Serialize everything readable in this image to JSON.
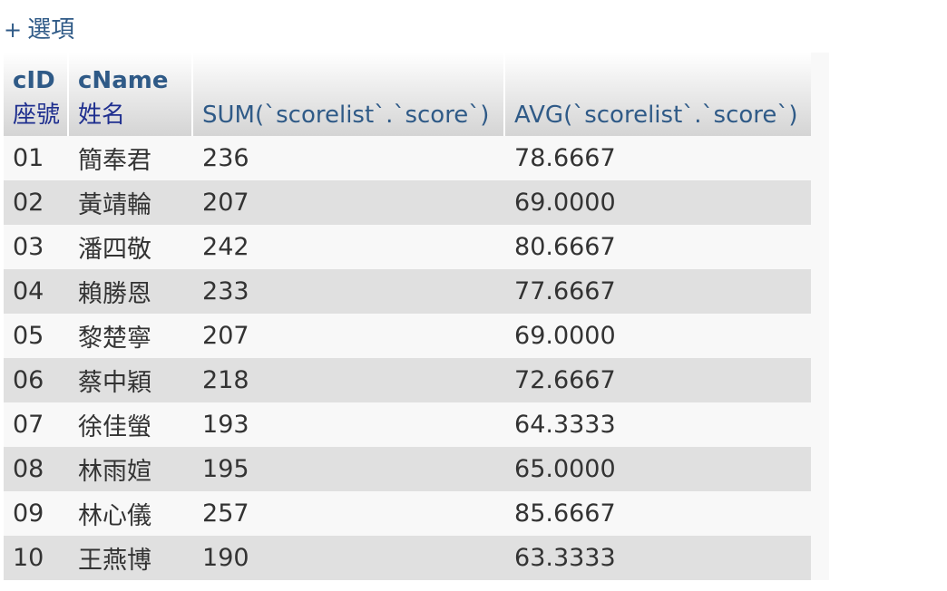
{
  "options": {
    "toggle_symbol": "+",
    "label": "選項"
  },
  "table": {
    "headers": [
      {
        "name": "cID",
        "comment": "座號"
      },
      {
        "name": "cName",
        "comment": "姓名"
      },
      {
        "label": "SUM(`scorelist`.`score`)"
      },
      {
        "label": "AVG(`scorelist`.`score`)"
      }
    ],
    "rows": [
      [
        "01",
        "簡奉君",
        "236",
        "78.6667"
      ],
      [
        "02",
        "黃靖輪",
        "207",
        "69.0000"
      ],
      [
        "03",
        "潘四敬",
        "242",
        "80.6667"
      ],
      [
        "04",
        "賴勝恩",
        "233",
        "77.6667"
      ],
      [
        "05",
        "黎楚寧",
        "207",
        "69.0000"
      ],
      [
        "06",
        "蔡中穎",
        "218",
        "72.6667"
      ],
      [
        "07",
        "徐佳螢",
        "193",
        "64.3333"
      ],
      [
        "08",
        "林雨媗",
        "195",
        "65.0000"
      ],
      [
        "09",
        "林心儀",
        "257",
        "85.6667"
      ],
      [
        "10",
        "王燕博",
        "190",
        "63.3333"
      ]
    ]
  },
  "colors": {
    "link": "#2f5a87",
    "comment": "#1f2f8f",
    "row_odd": "#f8f8f8",
    "row_even": "#e0e0e0"
  }
}
